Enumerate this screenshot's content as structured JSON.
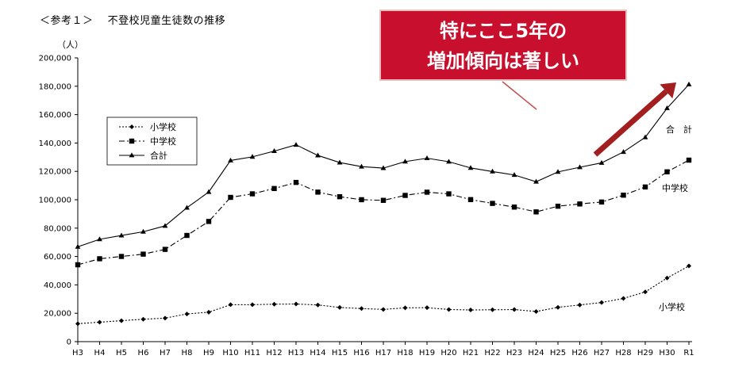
{
  "header": {
    "title": "＜参考１＞　 不登校児童生徒数の推移"
  },
  "callout": {
    "line1": "特にここ5年の",
    "line2": "増加傾向は著しい",
    "color": "#c8102e"
  },
  "chart_data": {
    "type": "line",
    "title": "",
    "unit_label": "（人）",
    "xlabel": "",
    "ylabel": "",
    "ylim": [
      0,
      200000
    ],
    "yticks": [
      0,
      20000,
      40000,
      60000,
      80000,
      100000,
      120000,
      140000,
      160000,
      180000,
      200000
    ],
    "ytick_labels": [
      "0",
      "20,000",
      "40,000",
      "60,000",
      "80,000",
      "100,000",
      "120,000",
      "140,000",
      "160,000",
      "180,000",
      "200,000"
    ],
    "grid": false,
    "legend_position": "upper-left",
    "categories": [
      "H3",
      "H4",
      "H5",
      "H6",
      "H7",
      "H8",
      "H9",
      "H10",
      "H11",
      "H12",
      "H13",
      "H14",
      "H15",
      "H16",
      "H17",
      "H18",
      "H19",
      "H20",
      "H21",
      "H22",
      "H23",
      "H24",
      "H25",
      "H26",
      "H27",
      "H28",
      "H29",
      "H30",
      "R1"
    ],
    "series": [
      {
        "name": "小学校",
        "label": "小学校",
        "marker": "diamond",
        "dash": "dotted",
        "values": [
          12645,
          13710,
          14769,
          15786,
          16569,
          19498,
          20765,
          26017,
          26047,
          26373,
          26511,
          25869,
          24077,
          23318,
          22709,
          23825,
          23927,
          22652,
          22327,
          22463,
          22622,
          21243,
          24175,
          25864,
          27583,
          30448,
          35032,
          44841,
          53350
        ]
      },
      {
        "name": "中学校",
        "label": "中学校",
        "marker": "square",
        "dash": "dashdot",
        "values": [
          54172,
          58421,
          60039,
          61663,
          65022,
          74853,
          84701,
          101675,
          104180,
          107913,
          112211,
          105383,
          102149,
          100040,
          99578,
          103069,
          105328,
          104153,
          100105,
          97428,
          94836,
          91446,
          95442,
          97033,
          98408,
          103235,
          108999,
          119687,
          127922
        ]
      },
      {
        "name": "合計",
        "label": "合　計",
        "marker": "triangle",
        "dash": "solid",
        "values": [
          66817,
          72131,
          74808,
          77449,
          81591,
          94351,
          105466,
          127692,
          130227,
          134286,
          138722,
          131252,
          126226,
          123358,
          122287,
          126894,
          129255,
          126805,
          122432,
          119891,
          117458,
          112689,
          119617,
          122897,
          125991,
          133683,
          144031,
          164528,
          181272
        ]
      }
    ]
  }
}
